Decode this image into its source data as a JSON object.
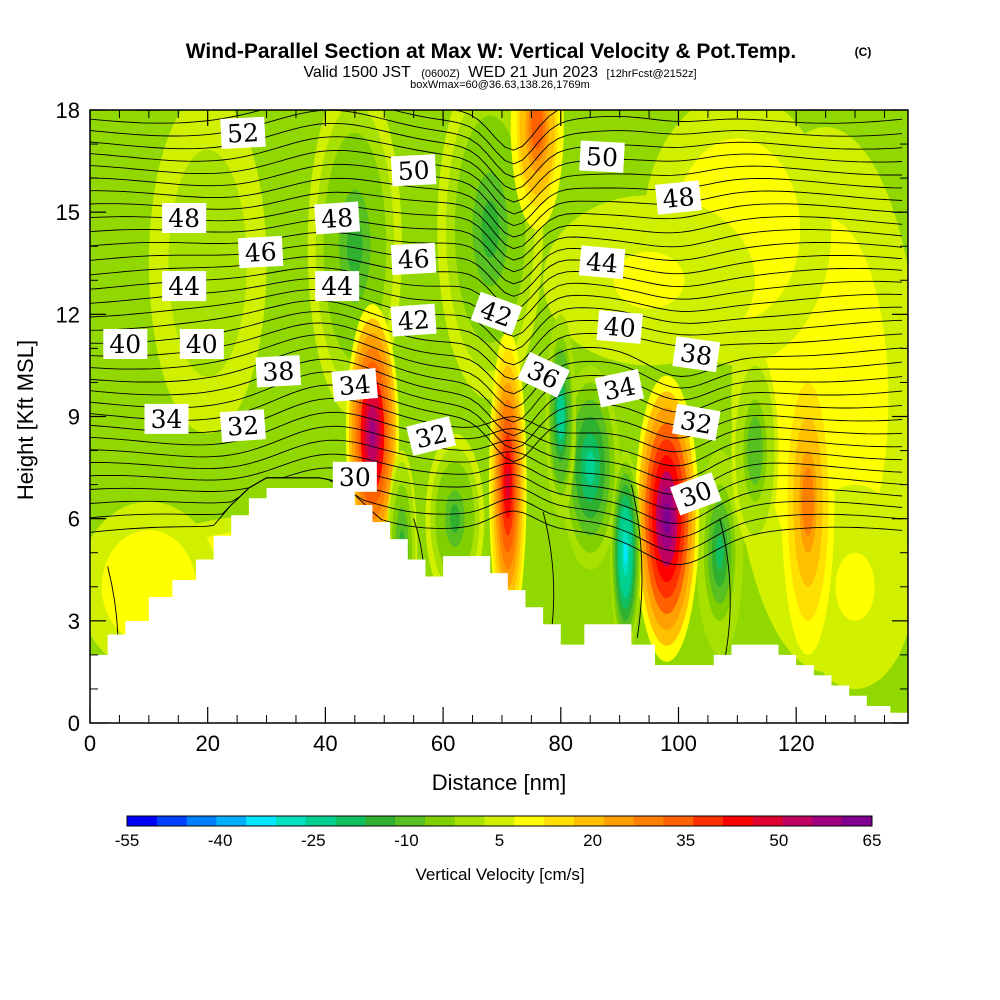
{
  "chart_data": {
    "type": "heatmap",
    "title": "Wind-Parallel Section at Max W: Vertical Velocity & Pot.Temp.",
    "copyright": "(C)",
    "subtitle_parts": [
      "Valid 1500 JST",
      "(0600Z)",
      "WED 21 Jun 2023",
      "[12hrFcst@2152z]"
    ],
    "subtitle2": "boxWmax=60@36.63,138.26,1769m",
    "xlabel": "Distance [nm]",
    "ylabel": "Height [Kft MSL]",
    "xlim": [
      0,
      139
    ],
    "ylim": [
      0,
      18
    ],
    "x_ticks": [
      0,
      20,
      40,
      60,
      80,
      100,
      120
    ],
    "y_ticks": [
      0,
      3,
      6,
      9,
      12,
      15,
      18
    ],
    "colorbar": {
      "label": "Vertical Velocity [cm/s]",
      "tick_values": [
        -55,
        -40,
        -25,
        -10,
        5,
        20,
        35,
        50,
        65
      ],
      "colors": [
        "#0000ff",
        "#0040ff",
        "#0080ff",
        "#00b0ff",
        "#00e8ff",
        "#00e0c0",
        "#00d090",
        "#10c060",
        "#30b030",
        "#58c020",
        "#80d000",
        "#a8e000",
        "#d0f000",
        "#ffff00",
        "#ffe000",
        "#ffc000",
        "#ffa000",
        "#ff8000",
        "#ff6000",
        "#ff3000",
        "#ff0000",
        "#e00030",
        "#c00060",
        "#a00080",
        "#800090"
      ]
    },
    "updraft_cores": [
      {
        "x": 48,
        "z": 8.5,
        "w": 60
      },
      {
        "x": 71,
        "z": 7.0,
        "w": 50
      },
      {
        "x": 98,
        "z": 6.0,
        "w": 65
      },
      {
        "x": 122,
        "z": 6.5,
        "w": 30
      },
      {
        "x": 76,
        "z": 17.5,
        "w": 35
      }
    ],
    "downdraft_cores": [
      {
        "x": 91,
        "z": 5.0,
        "w": -35
      },
      {
        "x": 80,
        "z": 9.0,
        "w": -25
      },
      {
        "x": 53,
        "z": 5.0,
        "w": -15
      }
    ],
    "terrain": [
      {
        "x": 0,
        "z": 2.0
      },
      {
        "x": 3,
        "z": 2.6
      },
      {
        "x": 6,
        "z": 3.0
      },
      {
        "x": 10,
        "z": 3.7
      },
      {
        "x": 14,
        "z": 4.2
      },
      {
        "x": 18,
        "z": 4.8
      },
      {
        "x": 21,
        "z": 5.5
      },
      {
        "x": 24,
        "z": 6.1
      },
      {
        "x": 27,
        "z": 6.6
      },
      {
        "x": 30,
        "z": 6.9
      },
      {
        "x": 40,
        "z": 6.9
      },
      {
        "x": 45,
        "z": 6.4
      },
      {
        "x": 48,
        "z": 5.9
      },
      {
        "x": 51,
        "z": 5.4
      },
      {
        "x": 54,
        "z": 4.8
      },
      {
        "x": 57,
        "z": 4.3
      },
      {
        "x": 60,
        "z": 4.9
      },
      {
        "x": 66,
        "z": 4.9
      },
      {
        "x": 68,
        "z": 4.4
      },
      {
        "x": 71,
        "z": 3.9
      },
      {
        "x": 74,
        "z": 3.4
      },
      {
        "x": 77,
        "z": 2.9
      },
      {
        "x": 80,
        "z": 2.3
      },
      {
        "x": 84,
        "z": 2.9
      },
      {
        "x": 88,
        "z": 2.9
      },
      {
        "x": 92,
        "z": 2.3
      },
      {
        "x": 96,
        "z": 1.7
      },
      {
        "x": 103,
        "z": 1.7
      },
      {
        "x": 106,
        "z": 2.0
      },
      {
        "x": 109,
        "z": 2.3
      },
      {
        "x": 115,
        "z": 2.3
      },
      {
        "x": 117,
        "z": 2.0
      },
      {
        "x": 120,
        "z": 1.7
      },
      {
        "x": 123,
        "z": 1.4
      },
      {
        "x": 126,
        "z": 1.1
      },
      {
        "x": 129,
        "z": 0.8
      },
      {
        "x": 132,
        "z": 0.5
      },
      {
        "x": 136,
        "z": 0.3
      },
      {
        "x": 139,
        "z": 0.3
      }
    ],
    "theta_labels": [
      {
        "v": "52",
        "x": 26,
        "z": 17.3,
        "r": -3
      },
      {
        "v": "50",
        "x": 55,
        "z": 16.2,
        "r": -3
      },
      {
        "v": "50",
        "x": 87,
        "z": 16.6,
        "r": 3
      },
      {
        "v": "48",
        "x": 16,
        "z": 14.8,
        "r": 0
      },
      {
        "v": "48",
        "x": 42,
        "z": 14.8,
        "r": -4
      },
      {
        "v": "48",
        "x": 100,
        "z": 15.4,
        "r": -6
      },
      {
        "v": "46",
        "x": 29,
        "z": 13.8,
        "r": -3
      },
      {
        "v": "46",
        "x": 55,
        "z": 13.6,
        "r": -3
      },
      {
        "v": "44",
        "x": 16,
        "z": 12.8,
        "r": 0
      },
      {
        "v": "44",
        "x": 42,
        "z": 12.8,
        "r": 0
      },
      {
        "v": "44",
        "x": 87,
        "z": 13.5,
        "r": 5
      },
      {
        "v": "42",
        "x": 55,
        "z": 11.8,
        "r": -4
      },
      {
        "v": "42",
        "x": 69,
        "z": 12.0,
        "r": 20
      },
      {
        "v": "40",
        "x": 6,
        "z": 11.1,
        "r": 0
      },
      {
        "v": "40",
        "x": 19,
        "z": 11.1,
        "r": 0
      },
      {
        "v": "40",
        "x": 90,
        "z": 11.6,
        "r": 5
      },
      {
        "v": "38",
        "x": 32,
        "z": 10.3,
        "r": -3
      },
      {
        "v": "38",
        "x": 103,
        "z": 10.8,
        "r": 8
      },
      {
        "v": "36",
        "x": 77,
        "z": 10.2,
        "r": 25
      },
      {
        "v": "34",
        "x": 13,
        "z": 8.9,
        "r": 0
      },
      {
        "v": "34",
        "x": 45,
        "z": 9.9,
        "r": -5
      },
      {
        "v": "34",
        "x": 90,
        "z": 9.8,
        "r": -12
      },
      {
        "v": "32",
        "x": 26,
        "z": 8.7,
        "r": -4
      },
      {
        "v": "32",
        "x": 58,
        "z": 8.4,
        "r": -14
      },
      {
        "v": "32",
        "x": 103,
        "z": 8.8,
        "r": 10
      },
      {
        "v": "30",
        "x": 45,
        "z": 7.2,
        "r": 0
      },
      {
        "v": "30",
        "x": 103,
        "z": 6.7,
        "r": -20
      }
    ]
  }
}
